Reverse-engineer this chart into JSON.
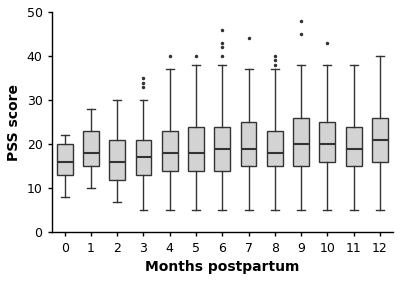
{
  "months": [
    0,
    1,
    2,
    3,
    4,
    5,
    6,
    7,
    8,
    9,
    10,
    11,
    12
  ],
  "boxes": [
    {
      "whislo": 8,
      "q1": 13,
      "med": 16,
      "q3": 20,
      "whishi": 22,
      "fliers": []
    },
    {
      "whislo": 10,
      "q1": 15,
      "med": 18,
      "q3": 23,
      "whishi": 28,
      "fliers": []
    },
    {
      "whislo": 7,
      "q1": 12,
      "med": 16,
      "q3": 21,
      "whishi": 30,
      "fliers": []
    },
    {
      "whislo": 5,
      "q1": 13,
      "med": 17,
      "q3": 21,
      "whishi": 30,
      "fliers": [
        33,
        34,
        35
      ]
    },
    {
      "whislo": 5,
      "q1": 14,
      "med": 18,
      "q3": 23,
      "whishi": 37,
      "fliers": [
        40
      ]
    },
    {
      "whislo": 5,
      "q1": 14,
      "med": 18,
      "q3": 24,
      "whishi": 38,
      "fliers": [
        40
      ]
    },
    {
      "whislo": 5,
      "q1": 14,
      "med": 19,
      "q3": 24,
      "whishi": 38,
      "fliers": [
        40,
        42,
        43,
        46
      ]
    },
    {
      "whislo": 5,
      "q1": 15,
      "med": 19,
      "q3": 25,
      "whishi": 37,
      "fliers": [
        44
      ]
    },
    {
      "whislo": 5,
      "q1": 15,
      "med": 18,
      "q3": 23,
      "whishi": 37,
      "fliers": [
        38,
        39,
        40
      ]
    },
    {
      "whislo": 5,
      "q1": 15,
      "med": 20,
      "q3": 26,
      "whishi": 38,
      "fliers": [
        45,
        48
      ]
    },
    {
      "whislo": 5,
      "q1": 16,
      "med": 20,
      "q3": 25,
      "whishi": 38,
      "fliers": [
        43
      ]
    },
    {
      "whislo": 5,
      "q1": 15,
      "med": 19,
      "q3": 24,
      "whishi": 38,
      "fliers": []
    },
    {
      "whislo": 5,
      "q1": 16,
      "med": 21,
      "q3": 26,
      "whishi": 40,
      "fliers": []
    }
  ],
  "ylabel": "PSS score",
  "xlabel": "Months postpartum",
  "ylim": [
    0,
    50
  ],
  "yticks": [
    0,
    10,
    20,
    30,
    40,
    50
  ],
  "box_facecolor": "#d3d3d3",
  "box_edgecolor": "#333333",
  "flier_marker": ".",
  "figsize": [
    4.0,
    2.81
  ],
  "dpi": 100
}
